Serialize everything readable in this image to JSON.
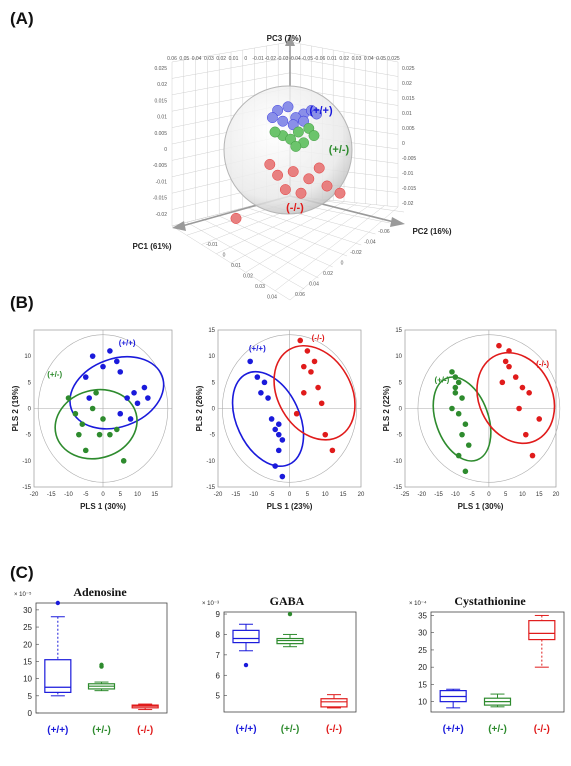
{
  "colors": {
    "wt": "#1a1adb",
    "het": "#2e8b2e",
    "ko": "#e01b1b",
    "wt_light": "#8a8fe8",
    "het_light": "#6cc46c",
    "ko_light": "#e88080"
  },
  "panel_labels": [
    "(A)",
    "(B)",
    "(C)"
  ],
  "chart_data": [
    {
      "type": "scatter",
      "panel": "(A)",
      "axes": {
        "x": "PC1 (61%)",
        "y": "PC2 (16%)",
        "z": "PC3 (7%)"
      },
      "top_ticks": [
        "0.06",
        "0.05",
        "0.04",
        "0.03",
        "0.02",
        "0.01",
        "0",
        "-0.01",
        "-0.02",
        "-0.03",
        "-0.04",
        "-0.05",
        "-0.06",
        "0.01",
        "0.02",
        "0.03",
        "0.04",
        "0.05",
        "0.025"
      ],
      "left_ticks": [
        "0.025",
        "0.02",
        "0.015",
        "0.01",
        "0.005",
        "0",
        "-0.005",
        "-0.01",
        "-0.015",
        "-0.02"
      ],
      "right_ticks": [
        "0.025",
        "0.02",
        "0.015",
        "0.01",
        "0.005",
        "0",
        "-0.005",
        "-0.01",
        "-0.015",
        "-0.02"
      ],
      "pc1_ticks": [
        "-0.01",
        "0",
        "0.01",
        "0.02",
        "0.03",
        "0.04"
      ],
      "pc2_ticks": [
        "-0.06",
        "-0.04",
        "-0.02",
        "0",
        "0.02",
        "0.04",
        "0.06"
      ],
      "groups": [
        {
          "name": "(+/+)",
          "color": "#1a1adb",
          "points": [
            [
              0.006,
              0.01
            ],
            [
              0.0,
              0.012
            ],
            [
              -0.004,
              0.011
            ],
            [
              0.003,
              0.009
            ],
            [
              0.009,
              0.011
            ],
            [
              -0.002,
              0.008
            ],
            [
              0.002,
              0.007
            ],
            [
              0.006,
              0.008
            ],
            [
              0.011,
              0.01
            ],
            [
              -0.006,
              0.009
            ]
          ]
        },
        {
          "name": "(+/-)",
          "color": "#2e8b2e",
          "points": [
            [
              -0.002,
              0.004
            ],
            [
              0.004,
              0.005
            ],
            [
              0.008,
              0.006
            ],
            [
              0.001,
              0.003
            ],
            [
              0.006,
              0.002
            ],
            [
              -0.005,
              0.005
            ],
            [
              0.01,
              0.004
            ],
            [
              0.003,
              0.001
            ]
          ]
        },
        {
          "name": "(-/-)",
          "color": "#e01b1b",
          "points": [
            [
              -0.004,
              -0.007
            ],
            [
              0.002,
              -0.006
            ],
            [
              0.008,
              -0.008
            ],
            [
              0.012,
              -0.005
            ],
            [
              -0.001,
              -0.011
            ],
            [
              0.005,
              -0.012
            ],
            [
              0.015,
              -0.01
            ],
            [
              -0.007,
              -0.004
            ],
            [
              0.02,
              -0.012
            ],
            [
              -0.02,
              -0.019
            ]
          ]
        }
      ]
    },
    {
      "type": "scatter",
      "panel": "(B)",
      "xlabel": "PLS 1 (30%)",
      "ylabel": "PLS 2 (19%)",
      "xlim": [
        -20,
        20
      ],
      "ylim": [
        -15,
        15
      ],
      "xticks": [
        "-20",
        "-15",
        "-10",
        "-5",
        "0",
        "5",
        "10",
        "15"
      ],
      "yticks": [
        "-15",
        "-10",
        "-5",
        "0",
        "5",
        "10"
      ],
      "series": [
        {
          "name": "(+/+)",
          "color": "#1a1adb",
          "x": [
            -3,
            0,
            2,
            4,
            5,
            -5,
            -4,
            9,
            10,
            12,
            13,
            7,
            8,
            5
          ],
          "y": [
            10,
            8,
            11,
            9,
            7,
            6,
            2,
            3,
            1,
            4,
            2,
            2,
            -2,
            -1
          ]
        },
        {
          "name": "(+/-)",
          "color": "#2e8b2e",
          "x": [
            -10,
            -8,
            -6,
            -5,
            -3,
            -2,
            0,
            2,
            4,
            6,
            -7,
            -1
          ],
          "y": [
            2,
            -1,
            -3,
            -8,
            0,
            3,
            -2,
            -5,
            -4,
            -10,
            -5,
            -5
          ]
        }
      ],
      "ellipses": [
        {
          "group": "(+/+)",
          "cx": 4,
          "cy": 3,
          "rx": 14,
          "ry": 6.5,
          "angle_deg": -20
        },
        {
          "group": "(+/-)",
          "cx": -2,
          "cy": -3,
          "rx": 12,
          "ry": 6.5,
          "angle_deg": -15
        }
      ]
    },
    {
      "type": "scatter",
      "panel": "(B)",
      "xlabel": "PLS 1 (23%)",
      "ylabel": "PLS 2 (26%)",
      "xlim": [
        -20,
        20
      ],
      "ylim": [
        -15,
        15
      ],
      "xticks": [
        "-20",
        "-15",
        "-10",
        "-5",
        "0",
        "5",
        "10",
        "15",
        "20"
      ],
      "yticks": [
        "-15",
        "-10",
        "-5",
        "0",
        "5",
        "10",
        "15"
      ],
      "series": [
        {
          "name": "(+/+)",
          "color": "#1a1adb",
          "x": [
            -11,
            -9,
            -7,
            -8,
            -6,
            -5,
            -4,
            -3,
            -2,
            -3,
            -4,
            -2,
            -3
          ],
          "y": [
            9,
            6,
            5,
            3,
            2,
            -2,
            -4,
            -5,
            -6,
            -8,
            -11,
            -13,
            -3
          ]
        },
        {
          "name": "(-/-)",
          "color": "#e01b1b",
          "x": [
            3,
            5,
            7,
            4,
            6,
            8,
            9,
            4,
            2,
            10,
            12
          ],
          "y": [
            13,
            11,
            9,
            8,
            7,
            4,
            1,
            3,
            -1,
            -5,
            -8
          ]
        }
      ],
      "ellipses": [
        {
          "group": "(+/+)",
          "cx": -6,
          "cy": -2,
          "rx": 14,
          "ry": 6,
          "angle_deg": 65
        },
        {
          "group": "(-/-)",
          "cx": 7,
          "cy": 3,
          "rx": 14,
          "ry": 7,
          "angle_deg": 60
        }
      ]
    },
    {
      "type": "scatter",
      "panel": "(B)",
      "xlabel": "PLS 1 (30%)",
      "ylabel": "PLS 2 (22%)",
      "xlim": [
        -25,
        20
      ],
      "ylim": [
        -15,
        15
      ],
      "xticks": [
        "-25",
        "-20",
        "-15",
        "-10",
        "-5",
        "0",
        "5",
        "10",
        "15",
        "20"
      ],
      "yticks": [
        "-15",
        "-10",
        "-5",
        "0",
        "5",
        "10",
        "15"
      ],
      "series": [
        {
          "name": "(+/-)",
          "color": "#2e8b2e",
          "x": [
            -11,
            -10,
            -9,
            -10,
            -8,
            -11,
            -9,
            -7,
            -8,
            -6,
            -9,
            -7,
            -10
          ],
          "y": [
            7,
            6,
            5,
            3,
            2,
            0,
            -1,
            -3,
            -5,
            -7,
            -9,
            -12,
            4
          ]
        },
        {
          "name": "(-/-)",
          "color": "#e01b1b",
          "x": [
            3,
            6,
            5,
            8,
            10,
            12,
            9,
            15,
            4,
            11,
            13,
            6
          ],
          "y": [
            12,
            11,
            9,
            6,
            4,
            3,
            0,
            -2,
            5,
            -5,
            -9,
            8
          ]
        }
      ],
      "ellipses": [
        {
          "group": "(+/-)",
          "cx": -8,
          "cy": -2,
          "rx": 13,
          "ry": 5,
          "angle_deg": 70
        },
        {
          "group": "(-/-)",
          "cx": 8,
          "cy": 2,
          "rx": 14,
          "ry": 7,
          "angle_deg": 65
        }
      ]
    },
    {
      "type": "box",
      "panel": "(C)",
      "title": "Adenosine",
      "multiplier": "× 10⁻⁵",
      "ylim": [
        0,
        32
      ],
      "yticks": [
        "0",
        "5",
        "10",
        "15",
        "20",
        "25",
        "30"
      ],
      "categories": [
        "(+/+)",
        "(+/-)",
        "(-/-)"
      ],
      "boxes": [
        {
          "group": "(+/+)",
          "color": "#1a1adb",
          "min": 5,
          "q1": 6,
          "median": 7.5,
          "q3": 15.5,
          "max": 28,
          "outliers": [
            32
          ],
          "dashed": true
        },
        {
          "group": "(+/-)",
          "color": "#2e8b2e",
          "min": 6.5,
          "q1": 7,
          "median": 7.8,
          "q3": 8.5,
          "max": 9,
          "outliers": [
            13.5,
            14
          ],
          "dashed": false
        },
        {
          "group": "(-/-)",
          "color": "#e01b1b",
          "min": 1,
          "q1": 1.5,
          "median": 2,
          "q3": 2.3,
          "max": 2.6,
          "outliers": [],
          "dashed": false
        }
      ]
    },
    {
      "type": "box",
      "panel": "(C)",
      "title": "GABA",
      "multiplier": "× 10⁻³",
      "ylim": [
        4.2,
        9.1
      ],
      "yticks": [
        "5",
        "6",
        "7",
        "8",
        "9"
      ],
      "categories": [
        "(+/+)",
        "(+/-)",
        "(-/-)"
      ],
      "boxes": [
        {
          "group": "(+/+)",
          "color": "#1a1adb",
          "min": 7.2,
          "q1": 7.6,
          "median": 7.8,
          "q3": 8.2,
          "max": 8.5,
          "outliers": [
            6.5
          ],
          "dashed": false
        },
        {
          "group": "(+/-)",
          "color": "#2e8b2e",
          "min": 7.4,
          "q1": 7.55,
          "median": 7.7,
          "q3": 7.8,
          "max": 8.0,
          "outliers": [
            9.0
          ],
          "dashed": false
        },
        {
          "group": "(-/-)",
          "color": "#e01b1b",
          "min": 4.4,
          "q1": 4.45,
          "median": 4.7,
          "q3": 4.85,
          "max": 5.05,
          "outliers": [],
          "dashed": false
        }
      ]
    },
    {
      "type": "box",
      "panel": "(C)",
      "title": "Cystathionine",
      "multiplier": "× 10⁻⁴",
      "ylim": [
        7,
        36
      ],
      "yticks": [
        "10",
        "15",
        "20",
        "25",
        "30",
        "35"
      ],
      "categories": [
        "(+/+)",
        "(+/-)",
        "(-/-)"
      ],
      "boxes": [
        {
          "group": "(+/+)",
          "color": "#1a1adb",
          "min": 8.2,
          "q1": 10,
          "median": 11.5,
          "q3": 13.2,
          "max": 13.6,
          "outliers": [],
          "dashed": false
        },
        {
          "group": "(+/-)",
          "color": "#2e8b2e",
          "min": 8.5,
          "q1": 9,
          "median": 10,
          "q3": 11,
          "max": 12.2,
          "outliers": [],
          "dashed": false
        },
        {
          "group": "(-/-)",
          "color": "#e01b1b",
          "min": 20,
          "q1": 28,
          "median": 29.8,
          "q3": 33.5,
          "max": 35,
          "outliers": [],
          "dashed": true
        }
      ]
    }
  ]
}
